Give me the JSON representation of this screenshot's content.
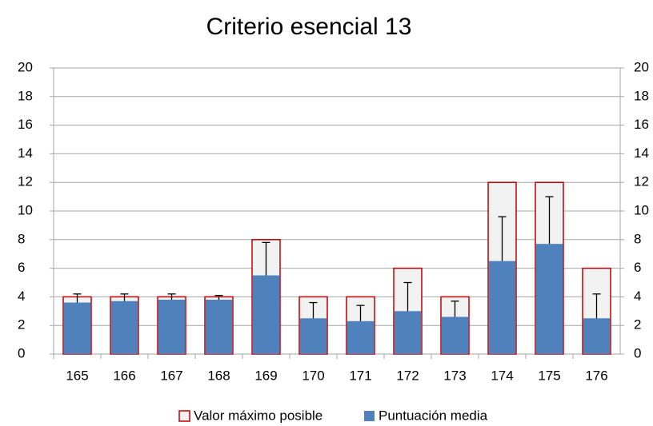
{
  "chart_data": {
    "type": "bar",
    "title": "Criterio esencial 13",
    "categories": [
      "165",
      "166",
      "167",
      "168",
      "169",
      "170",
      "171",
      "172",
      "173",
      "174",
      "175",
      "176"
    ],
    "series": [
      {
        "name": "Valor máximo posible",
        "color": "#f2f2f2",
        "edgecolor": "#c00000",
        "values": [
          4,
          4,
          4,
          4,
          8,
          4,
          4,
          6,
          4,
          12,
          12,
          6
        ]
      },
      {
        "name": "Puntuación media",
        "color": "#4f81bd",
        "values": [
          3.6,
          3.7,
          3.8,
          3.8,
          5.5,
          2.5,
          2.3,
          3.0,
          2.6,
          6.5,
          7.7,
          2.5
        ],
        "errors": [
          0.6,
          0.5,
          0.4,
          0.3,
          2.3,
          1.1,
          1.1,
          2.0,
          1.1,
          3.1,
          3.3,
          1.7
        ]
      }
    ],
    "ylim": [
      0,
      20
    ],
    "yticks": [
      0,
      2,
      4,
      6,
      8,
      10,
      12,
      14,
      16,
      18,
      20
    ],
    "y2lim": [
      0,
      20
    ],
    "y2ticks": [
      0,
      2,
      4,
      6,
      8,
      10,
      12,
      14,
      16,
      18,
      20
    ],
    "grid": true,
    "legend": "bottom"
  }
}
